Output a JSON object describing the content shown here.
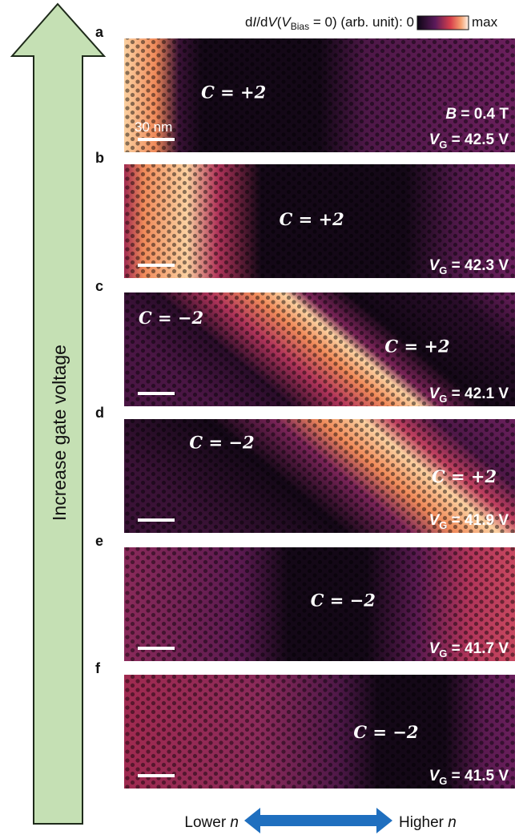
{
  "colorbar": {
    "label": [
      "d",
      "I",
      "/d",
      "V",
      "(",
      "V",
      "Bias",
      " = 0) (arb. unit): ",
      "0"
    ],
    "max": "max"
  },
  "gate_symbol": "V",
  "gate_subscript": "G",
  "scale_bar": "30 nm",
  "field": {
    "symbol": "B",
    "text": " = 0.4 T"
  },
  "panels": [
    {
      "letter": "a",
      "chern": [
        "C = +2"
      ],
      "vg": " = 42.5 V"
    },
    {
      "letter": "b",
      "chern": [
        "C = +2"
      ],
      "vg": " = 42.3 V"
    },
    {
      "letter": "c",
      "chern": [
        "C = −2",
        "C = +2"
      ],
      "vg": " = 42.1 V"
    },
    {
      "letter": "d",
      "chern": [
        "C = −2",
        "C = +2"
      ],
      "vg": " = 41.9 V"
    },
    {
      "letter": "e",
      "chern": [
        "C = −2"
      ],
      "vg": " = 41.7 V"
    },
    {
      "letter": "f",
      "chern": [
        "C = −2"
      ],
      "vg": " = 41.5 V"
    }
  ],
  "left_arrow": "Increase gate voltage",
  "bottom_arrow": {
    "lower": [
      "Lower ",
      "n"
    ],
    "higher": [
      "Higher ",
      "n"
    ]
  }
}
